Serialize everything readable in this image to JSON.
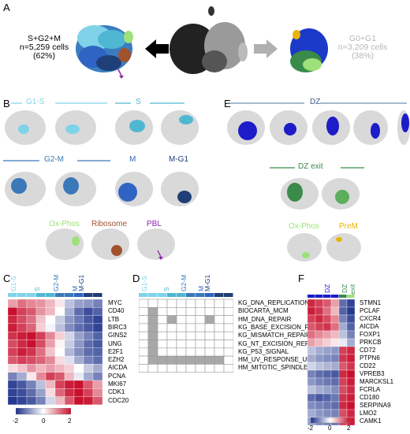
{
  "panels": {
    "a": "A",
    "b": "B",
    "c": "C",
    "d": "D",
    "e": "E",
    "f": "F"
  },
  "panel_a": {
    "left_label": [
      "S+G2+M",
      "n=5,259 cells",
      "(62%)"
    ],
    "right_label": [
      "G0+G1",
      "n=3,209 cells",
      "(38%)"
    ]
  },
  "panel_b": {
    "g1s": "G1-S",
    "s": "S",
    "g2m": "G2-M",
    "m": "M",
    "mg1": "M-G1",
    "oxphos": "Ox-Phos",
    "ribosome": "Ribosome",
    "pbl": "PBL"
  },
  "panel_e": {
    "dz": "DZ",
    "dzexit": "DZ exit",
    "oxphos": "Ox-Phos",
    "prem": "PreM"
  },
  "panel_c": {
    "col_labels": [
      "G1-S",
      "S",
      "G2-M",
      "M",
      "M-G1"
    ],
    "genes": [
      "MYC",
      "CD40",
      "LTB",
      "BIRC3",
      "GINS2",
      "UNG",
      "E2F1",
      "EZH2",
      "AICDA",
      "PCNA",
      "MKI67",
      "CDK1",
      "CDC20"
    ],
    "legend_ticks": [
      "-2",
      "0",
      "2"
    ]
  },
  "panel_d": {
    "col_labels": [
      "G1-S",
      "S",
      "G2-M",
      "M",
      "M-G1"
    ],
    "pathways": [
      "KG_DNA_REPLICATION",
      "BIOCARTA_MCM",
      "HM_DNA_REPAIR",
      "KG_BASE_EXCISION_REPAIR",
      "KG_MISMATCH_REPAIR",
      "KG_NT_EXCISION_REPAIR",
      "KG_P53_SIGNAL",
      "HM_UV_RESPONSE_UP",
      "HM_MITOTIC_SPINDLE"
    ]
  },
  "panel_f": {
    "col_labels": [
      "DZ",
      "DZ",
      "exit"
    ],
    "genes": [
      "STMN1",
      "PCLAF",
      "CXCR4",
      "AICDA",
      "FOXP1",
      "PRKCB",
      "CD72",
      "PTPN6",
      "CD22",
      "VPREB3",
      "MARCKSL1",
      "FCRLA",
      "CD180",
      "SERPINA9",
      "LMO2",
      "CAMK1"
    ],
    "legend_ticks": [
      "-2",
      "0",
      "2"
    ]
  },
  "colors": {
    "g1s": "#7fd3e8",
    "s": "#4fb7d2",
    "g2m": "#3a78b8",
    "m": "#2f64c4",
    "mg1": "#1f3f78",
    "oxphos": "#9ee07a",
    "ribosome": "#a0522d",
    "pbl": "#8e24aa",
    "dz": "#1c1cc8",
    "dzexit": "#3a8a4a",
    "prem": "#e8b400",
    "grey_text": "#b5b5b5"
  },
  "heatmap_c": [
    [
      0.8,
      1.2,
      1.0,
      0.9,
      0.6,
      0.2,
      -0.6,
      -0.9,
      -1.0,
      -1.2
    ],
    [
      2.0,
      1.6,
      1.4,
      0.9,
      0.6,
      0.0,
      -0.8,
      -1.4,
      -1.7,
      -1.5
    ],
    [
      1.8,
      1.5,
      1.2,
      0.5,
      0.0,
      -0.5,
      -1.0,
      -1.3,
      -1.6,
      -1.8
    ],
    [
      1.9,
      1.6,
      1.3,
      0.4,
      -0.1,
      -0.6,
      -1.1,
      -1.4,
      -1.6,
      -1.8
    ],
    [
      1.7,
      1.9,
      2.0,
      1.6,
      1.0,
      0.4,
      -0.4,
      -0.9,
      -1.2,
      -1.5
    ],
    [
      1.5,
      1.8,
      2.0,
      1.5,
      0.8,
      0.1,
      -0.5,
      -1.0,
      -1.4,
      -1.6
    ],
    [
      1.6,
      1.9,
      1.7,
      1.2,
      0.5,
      0.0,
      -0.7,
      -1.1,
      -1.4,
      -1.5
    ],
    [
      1.4,
      1.6,
      1.5,
      1.3,
      1.0,
      0.3,
      -0.3,
      -0.8,
      -1.2,
      -1.4
    ],
    [
      0.3,
      0.5,
      0.9,
      0.6,
      0.8,
      0.6,
      0.4,
      0.0,
      -0.5,
      -0.8
    ],
    [
      -1.2,
      -0.8,
      0.2,
      1.0,
      1.6,
      1.4,
      0.6,
      -0.2,
      -0.8,
      -1.2
    ],
    [
      -1.8,
      -1.6,
      -1.2,
      -0.6,
      0.6,
      1.6,
      1.9,
      2.0,
      1.4,
      0.8
    ],
    [
      -1.8,
      -1.7,
      -1.4,
      -0.9,
      0.3,
      1.3,
      1.8,
      2.0,
      1.6,
      1.0
    ],
    [
      -1.9,
      -1.8,
      -1.6,
      -1.2,
      -0.4,
      0.6,
      1.4,
      2.0,
      1.9,
      1.4
    ]
  ],
  "grid_d": [
    [
      0,
      0,
      0,
      0,
      0,
      0,
      0,
      0,
      0,
      0
    ],
    [
      0,
      1,
      0,
      0,
      0,
      0,
      0,
      0,
      0,
      0
    ],
    [
      0,
      1,
      0,
      1,
      0,
      0,
      0,
      1,
      0,
      0
    ],
    [
      0,
      1,
      0,
      0,
      0,
      0,
      0,
      0,
      0,
      0
    ],
    [
      0,
      1,
      0,
      0,
      0,
      0,
      0,
      0,
      0,
      0
    ],
    [
      0,
      1,
      0,
      0,
      0,
      0,
      0,
      0,
      0,
      0
    ],
    [
      0,
      1,
      0,
      0,
      0,
      0,
      0,
      0,
      0,
      0
    ],
    [
      0,
      1,
      1,
      1,
      1,
      1,
      1,
      1,
      1,
      0
    ],
    [
      0,
      0,
      0,
      0,
      0,
      0,
      0,
      0,
      0,
      0
    ]
  ],
  "heatmap_f": [
    [
      1.8,
      1.6,
      1.4,
      0.8,
      -1.4,
      -1.8
    ],
    [
      1.9,
      1.7,
      1.2,
      0.6,
      -1.5,
      -1.9
    ],
    [
      1.6,
      1.8,
      1.5,
      1.0,
      -1.2,
      -1.7
    ],
    [
      1.4,
      1.6,
      1.7,
      1.2,
      -0.8,
      -1.5
    ],
    [
      1.2,
      1.0,
      0.8,
      0.6,
      -0.6,
      -1.2
    ],
    [
      0.8,
      0.6,
      0.4,
      0.2,
      -0.2,
      -0.8
    ],
    [
      -0.6,
      -0.8,
      -0.9,
      -1.0,
      1.6,
      1.8
    ],
    [
      -0.8,
      -1.0,
      -1.1,
      -1.2,
      1.7,
      1.9
    ],
    [
      -0.4,
      -0.6,
      -0.7,
      -0.8,
      1.4,
      1.7
    ],
    [
      -1.2,
      -1.4,
      -1.5,
      -1.6,
      1.8,
      2.0
    ],
    [
      -1.0,
      -1.2,
      -1.3,
      -1.4,
      1.6,
      1.9
    ],
    [
      -0.6,
      -0.8,
      -0.9,
      -1.1,
      1.5,
      1.8
    ],
    [
      -1.4,
      -1.6,
      -1.5,
      -1.3,
      1.7,
      1.9
    ],
    [
      -1.1,
      -1.2,
      -1.3,
      -1.4,
      1.8,
      2.0
    ],
    [
      -0.8,
      -1.0,
      -1.1,
      -1.2,
      1.5,
      1.8
    ],
    [
      -0.9,
      -1.1,
      -1.2,
      -1.3,
      1.6,
      1.9
    ]
  ]
}
